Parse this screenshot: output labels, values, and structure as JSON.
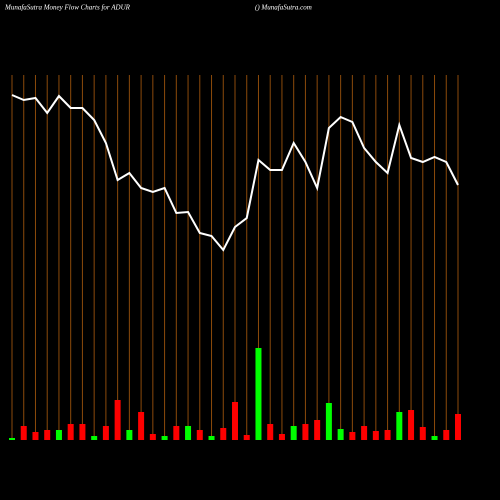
{
  "chart_data": [
    {
      "type": "line",
      "title": "MunafaSutra  Money Flow  Charts for ADUR",
      "subtitle": "() MunafaSutra.com",
      "values": [
        205,
        200,
        202,
        187,
        204,
        192,
        192,
        180,
        157,
        120,
        127,
        112,
        108,
        112,
        87,
        88,
        67,
        64,
        50,
        73,
        82,
        140,
        130,
        130,
        157,
        138,
        112,
        172,
        183,
        178,
        152,
        138,
        127,
        175,
        142,
        138,
        143,
        138,
        115
      ],
      "color": "#ffffff",
      "ylim": [
        0,
        300
      ],
      "grid_color": "#8b4a0b"
    },
    {
      "type": "bar",
      "values": [
        2,
        14,
        8,
        10,
        10,
        16,
        16,
        4,
        14,
        40,
        10,
        28,
        6,
        4,
        14,
        14,
        10,
        4,
        12,
        38,
        5,
        92,
        16,
        6,
        14,
        16,
        20,
        37,
        11,
        8,
        14,
        9,
        10,
        28,
        30,
        13,
        4,
        10,
        26
      ],
      "colors": [
        "#00ff00",
        "#ff0000",
        "#ff0000",
        "#ff0000",
        "#00ff00",
        "#ff0000",
        "#ff0000",
        "#00ff00",
        "#ff0000",
        "#ff0000",
        "#00ff00",
        "#ff0000",
        "#ff0000",
        "#00ff00",
        "#ff0000",
        "#00ff00",
        "#ff0000",
        "#00ff00",
        "#ff0000",
        "#ff0000",
        "#ff0000",
        "#00ff00",
        "#ff0000",
        "#ff0000",
        "#00ff00",
        "#ff0000",
        "#ff0000",
        "#00ff00",
        "#00ff00",
        "#ff0000",
        "#ff0000",
        "#ff0000",
        "#ff0000",
        "#00ff00",
        "#ff0000",
        "#ff0000",
        "#00ff00",
        "#ff0000",
        "#ff0000"
      ],
      "ylim": [
        0,
        100
      ]
    }
  ]
}
